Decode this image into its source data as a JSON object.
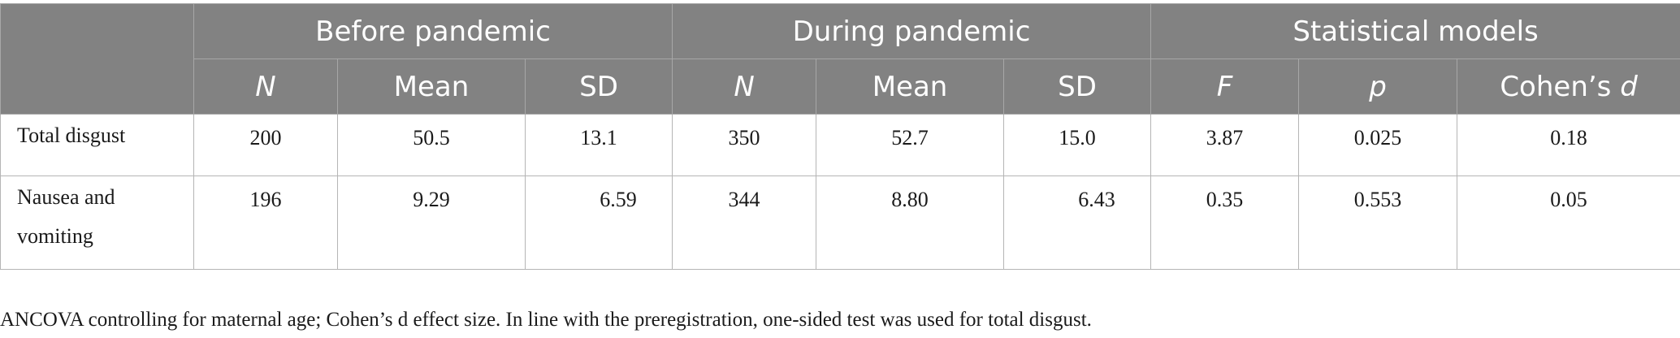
{
  "table": {
    "groups": [
      {
        "label": "Before pandemic"
      },
      {
        "label": "During pandemic"
      },
      {
        "label": "Statistical models"
      }
    ],
    "subheaders": {
      "before_n": "N",
      "before_mean": "Mean",
      "before_sd": "SD",
      "during_n": "N",
      "during_mean": "Mean",
      "during_sd": "SD",
      "f": "F",
      "p": "p",
      "cohens_prefix": "Cohen’s ",
      "cohens_d": "d"
    },
    "rows": [
      {
        "label": "Total disgust",
        "before_n": "200",
        "before_mean": "50.5",
        "before_sd": "13.1",
        "during_n": "350",
        "during_mean": "52.7",
        "during_sd": "15.0",
        "f": "3.87",
        "p": "0.025",
        "d": "0.18"
      },
      {
        "label_line1": "Nausea and",
        "label_line2": "vomiting",
        "before_n": "196",
        "before_mean": "9.29",
        "before_sd": "6.59",
        "during_n": "344",
        "during_mean": "8.80",
        "during_sd": "6.43",
        "f": "0.35",
        "p": "0.553",
        "d": "0.05"
      }
    ]
  },
  "footnote": "ANCOVA controlling for maternal age; Cohen’s d effect size. In line with the preregistration, one-sided test was used for total disgust.",
  "colors": {
    "header_bg": "#828282",
    "header_text": "#ffffff",
    "border": "#b5b5b5"
  }
}
